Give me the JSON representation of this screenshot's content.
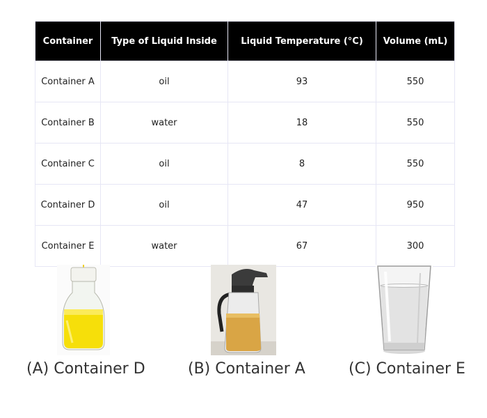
{
  "table": {
    "headers": [
      "Container",
      "Type of Liquid Inside",
      "Liquid Temperature (°C)",
      "Volume (mL)"
    ],
    "rows": [
      [
        "Container A",
        "oil",
        "93",
        "550"
      ],
      [
        "Container B",
        "water",
        "18",
        "550"
      ],
      [
        "Container C",
        "oil",
        "8",
        "550"
      ],
      [
        "Container D",
        "oil",
        "47",
        "950"
      ],
      [
        "Container E",
        "water",
        "67",
        "300"
      ]
    ]
  },
  "options": [
    {
      "label": "(A) Container D",
      "icon": "oil-flask-image"
    },
    {
      "label": "(B) Container A",
      "icon": "oil-dispenser-jar-image"
    },
    {
      "label": "(C) Container E",
      "icon": "water-glass-image"
    }
  ]
}
